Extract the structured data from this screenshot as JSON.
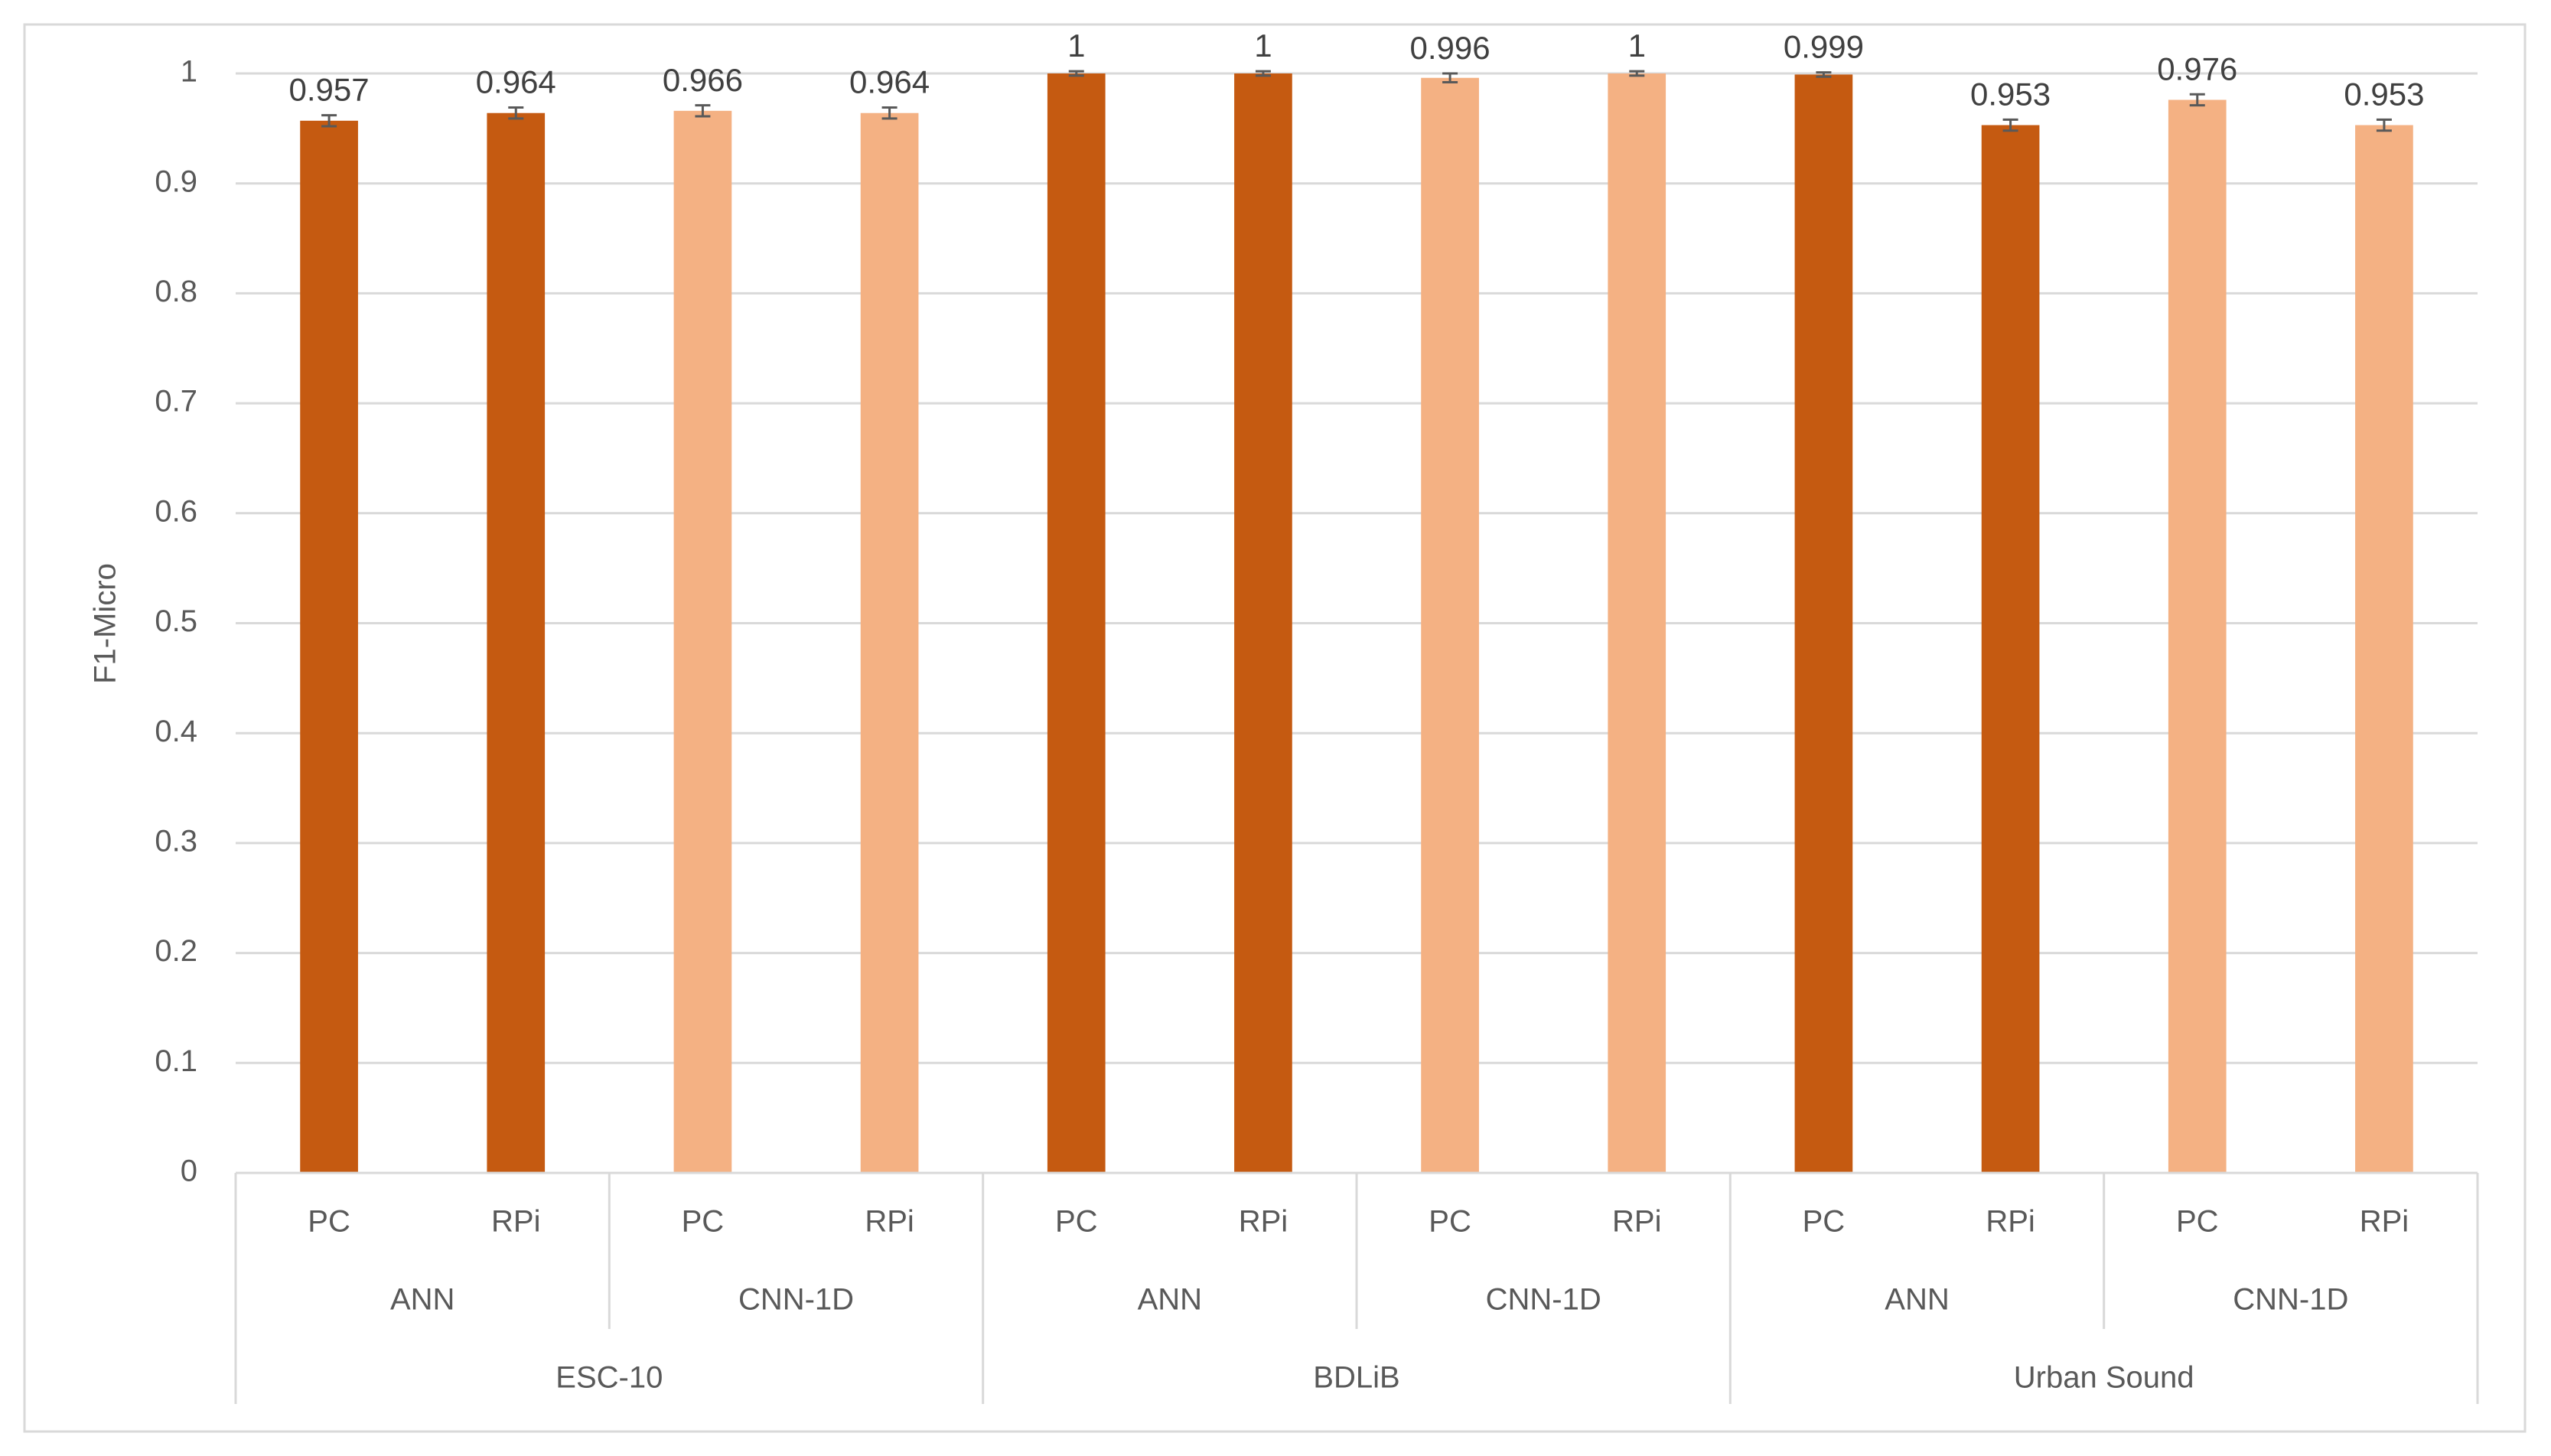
{
  "chart_data": {
    "type": "grouped-bar",
    "y_label": "F1-Micro",
    "ylim": [
      0,
      1
    ],
    "yticks": [
      0,
      0.1,
      0.2,
      0.3,
      0.4,
      0.5,
      0.6,
      0.7,
      0.8,
      0.9,
      1
    ],
    "grid": true,
    "groups": [
      {
        "name": "ESC-10",
        "subgroups": [
          {
            "name": "ANN",
            "color": "#c55a11",
            "categories": [
              "PC",
              "RPi"
            ],
            "values": [
              0.957,
              0.964
            ],
            "errors": [
              0.005,
              0.005
            ]
          },
          {
            "name": "CNN-1D",
            "color": "#f4b183",
            "categories": [
              "PC",
              "RPi"
            ],
            "values": [
              0.966,
              0.964
            ],
            "errors": [
              0.005,
              0.005
            ]
          }
        ]
      },
      {
        "name": "BDLiB",
        "subgroups": [
          {
            "name": "ANN",
            "color": "#c55a11",
            "categories": [
              "PC",
              "RPi"
            ],
            "values": [
              1,
              1
            ],
            "errors": [
              0.002,
              0.002
            ]
          },
          {
            "name": "CNN-1D",
            "color": "#f4b183",
            "categories": [
              "PC",
              "RPi"
            ],
            "values": [
              0.996,
              1
            ],
            "errors": [
              0.004,
              0.002
            ]
          }
        ]
      },
      {
        "name": "Urban Sound",
        "subgroups": [
          {
            "name": "ANN",
            "color": "#c55a11",
            "categories": [
              "PC",
              "RPi"
            ],
            "values": [
              0.999,
              0.953
            ],
            "errors": [
              0.002,
              0.005
            ]
          },
          {
            "name": "CNN-1D",
            "color": "#f4b183",
            "categories": [
              "PC",
              "RPi"
            ],
            "values": [
              0.976,
              0.953
            ],
            "errors": [
              0.005,
              0.005
            ]
          }
        ]
      }
    ]
  }
}
